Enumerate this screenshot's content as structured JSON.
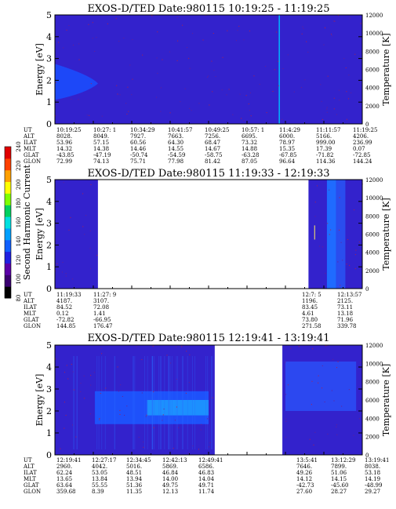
{
  "chart_data": [
    {
      "type": "heatmap",
      "title": "EXOS-D/TED   Date:980115   10:19:25 - 11:19:25",
      "ylabel": "Energy [eV]",
      "ylabel_right": "Temperature [K]",
      "ylim": [
        0,
        5
      ],
      "yticks": [
        "0",
        "1",
        "2",
        "3",
        "4",
        "5"
      ],
      "right_ylim": [
        0,
        12000
      ],
      "right_yticks": [
        "0",
        "2000",
        "4000",
        "6000",
        "8000",
        "10000",
        "12000"
      ],
      "data_ranges": [
        [
          0,
          1.0
        ]
      ],
      "ephemeris": {
        "labels": [
          "UT",
          "ALT",
          "ILAT",
          "MLT",
          "GLAT",
          "GLON"
        ],
        "columns": [
          [
            "10:19:25",
            "8028.",
            "53.96",
            "14.32",
            "-43.85",
            "72.99"
          ],
          [
            "10:27: 1",
            "8049.",
            "57.15",
            "14.38",
            "-47.19",
            "74.13"
          ],
          [
            "10:34:29",
            "7927.",
            "60.56",
            "14.46",
            "-50.74",
            "75.71"
          ],
          [
            "10:41:57",
            "7663.",
            "64.30",
            "14.55",
            "-54.59",
            "77.98"
          ],
          [
            "10:49:25",
            "7256.",
            "68.47",
            "14.67",
            "-58.75",
            "81.42"
          ],
          [
            "10:57: 1",
            "6695.",
            "73.32",
            "14.88",
            "-63.28",
            "87.05"
          ],
          [
            "11:4:29",
            "6000.",
            "78.97",
            "15.35",
            "-67.85",
            "96.64"
          ],
          [
            "11:11:57",
            "5166.",
            "999.00",
            "17.39",
            "-71.82",
            "114.36"
          ],
          [
            "11:19:25",
            "4206.",
            "236.99",
            "0.07",
            "-72.85",
            "144.24"
          ]
        ]
      }
    },
    {
      "type": "heatmap",
      "title": "EXOS-D/TED   Date:980115   11:19:33 - 12:19:33",
      "ylabel": "Energy [eV]",
      "ylabel_right": "Temperature [K]",
      "ylim": [
        0,
        5
      ],
      "yticks": [
        "0",
        "1",
        "2",
        "3",
        "4",
        "5"
      ],
      "right_ylim": [
        0,
        12000
      ],
      "right_yticks": [
        "0",
        "2000",
        "4000",
        "6000",
        "8000",
        "10000",
        "12000"
      ],
      "data_ranges": [
        [
          0,
          0.14
        ],
        [
          0.825,
          1.0
        ]
      ],
      "ephemeris": {
        "labels": [
          "UT",
          "ALT",
          "ILAT",
          "MLT",
          "GLAT",
          "GLON"
        ],
        "columns": [
          [
            "11:19:33",
            "4187.",
            "84.52",
            "0.12",
            "-72.82",
            "144.85"
          ],
          [
            "11:27: 9",
            "3107.",
            "72.08",
            "1.41",
            "-66.95",
            "176.47"
          ],
          [
            "12:7: 5",
            "1196.",
            "83.45",
            "4.61",
            "73.80",
            "271.58"
          ],
          [
            "12:13:57",
            "2125.",
            "73.11",
            "13.18",
            "71.96",
            "339.78"
          ]
        ]
      }
    },
    {
      "type": "heatmap",
      "title": "EXOS-D/TED   Date:980115   12:19:41 - 13:19:41",
      "ylabel": "Energy [eV]",
      "ylabel_right": "Temperature [K]",
      "ylim": [
        0,
        5
      ],
      "yticks": [
        "0",
        "1",
        "2",
        "3",
        "4",
        "5"
      ],
      "right_ylim": [
        0,
        12000
      ],
      "right_yticks": [
        "0",
        "2000",
        "4000",
        "6000",
        "8000",
        "10000",
        "12000"
      ],
      "data_ranges": [
        [
          0,
          0.52
        ],
        [
          0.74,
          1.0
        ]
      ],
      "ephemeris": {
        "labels": [
          "UT",
          "ALT",
          "ILAT",
          "MLT",
          "GLAT",
          "GLON"
        ],
        "columns": [
          [
            "12:19:41",
            "2960.",
            "62.24",
            "13.65",
            "63.64",
            "359.68"
          ],
          [
            "12:27:17",
            "4042.",
            "53.05",
            "13.84",
            "55.55",
            "8.39"
          ],
          [
            "12:34:45",
            "5016.",
            "48.51",
            "13.94",
            "51.36",
            "11.35"
          ],
          [
            "12:42:13",
            "5869.",
            "46.84",
            "14.00",
            "49.75",
            "12.13"
          ],
          [
            "12:49:41",
            "6586.",
            "46.83",
            "14.04",
            "49.71",
            "11.74"
          ],
          [
            "13:5:41",
            "7646.",
            "49.26",
            "14.12",
            "-42.73",
            "27.60"
          ],
          [
            "13:12:29",
            "7899.",
            "51.06",
            "14.15",
            "-45.60",
            "28.27"
          ],
          [
            "13:19:41",
            "8038.",
            "53.18",
            "14.19",
            "-48.99",
            "29.27"
          ]
        ]
      }
    }
  ],
  "colorbar": {
    "label": "Second Harmonic Current",
    "ticks": [
      "80",
      "100",
      "120",
      "140",
      "160",
      "180",
      "200",
      "220",
      "240"
    ],
    "colors": [
      "#000000",
      "#3a0070",
      "#5a00a8",
      "#2020e0",
      "#1060ff",
      "#00a0ff",
      "#00e0e0",
      "#00d060",
      "#80ff00",
      "#ffff00",
      "#ffa000",
      "#ff4000",
      "#e00000"
    ]
  }
}
